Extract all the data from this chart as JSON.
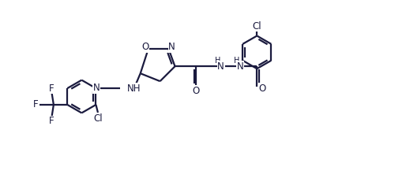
{
  "bg_color": "#ffffff",
  "line_color": "#1a1a3e",
  "line_width": 1.6,
  "font_size": 8.5,
  "figsize": [
    5.14,
    2.45
  ],
  "dpi": 100,
  "xlim": [
    0,
    10.28
  ],
  "ylim": [
    0,
    4.9
  ]
}
